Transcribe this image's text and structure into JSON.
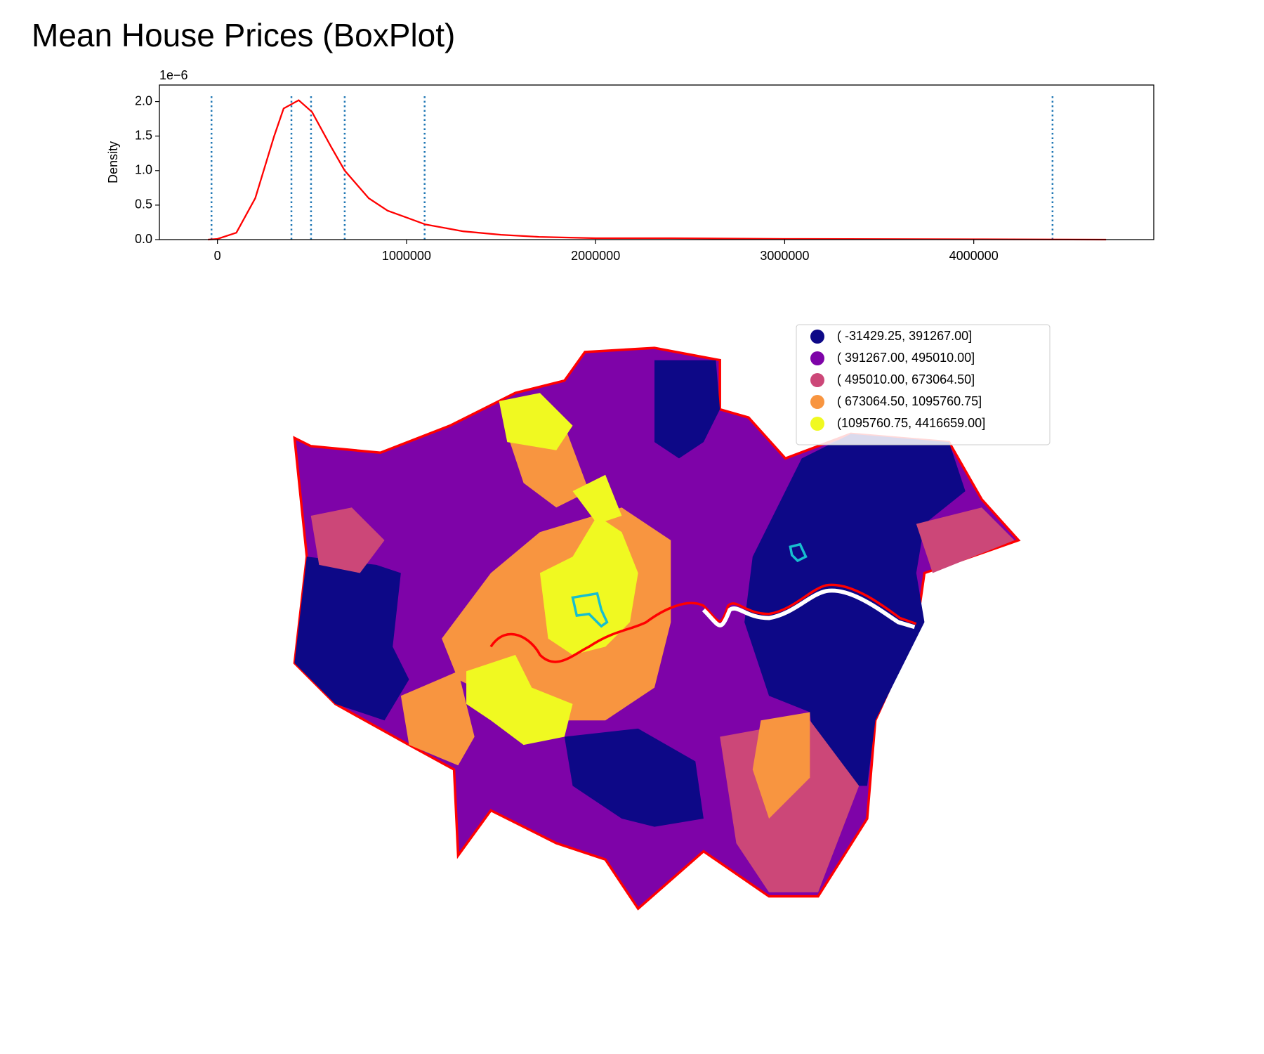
{
  "title": "Mean House Prices (BoxPlot)",
  "chart_data": [
    {
      "type": "line",
      "ylabel": "Density",
      "y_offset_label": "1e−6",
      "x": [
        -50000,
        0,
        100000,
        200000,
        300000,
        350000,
        430000,
        500000,
        600000,
        673000,
        800000,
        900000,
        1000000,
        1100000,
        1300000,
        1500000,
        1700000,
        2000000,
        2400000,
        3000000,
        4000000,
        4700000
      ],
      "values": [
        0,
        0.01,
        0.1,
        0.6,
        1.5,
        1.9,
        2.02,
        1.85,
        1.35,
        1.0,
        0.6,
        0.42,
        0.32,
        0.22,
        0.12,
        0.07,
        0.04,
        0.02,
        0.02,
        0.01,
        0.005,
        0
      ],
      "color": "#ff0000",
      "vlines": [
        -31429.25,
        391267,
        495010,
        673064.5,
        1095760.75,
        4416659
      ],
      "vline_color": "#1f77b4",
      "xlim": [
        -307000,
        4952000
      ],
      "ylim": [
        0,
        2.24
      ],
      "xticks": [
        0,
        1000000,
        2000000,
        3000000,
        4000000
      ],
      "yticks": [
        {
          "value": 0,
          "label": "0.0"
        },
        {
          "value": 0.5,
          "label": "0.5"
        },
        {
          "value": 1,
          "label": "1.0"
        },
        {
          "value": 1.5,
          "label": "1.5"
        },
        {
          "value": 2,
          "label": "2.0"
        }
      ]
    },
    {
      "type": "choropleth",
      "legend_loc": "upper right",
      "legend": [
        {
          "label": "( -31429.25,  391267.00]",
          "color": "#0d0887"
        },
        {
          "label": "( 391267.00,  495010.00]",
          "color": "#7e03a8"
        },
        {
          "label": "( 495010.00,  673064.50]",
          "color": "#cc4778"
        },
        {
          "label": "( 673064.50, 1095760.75]",
          "color": "#f89540"
        },
        {
          "label": "(1095760.75, 4416659.00]",
          "color": "#f0f921"
        }
      ]
    }
  ]
}
